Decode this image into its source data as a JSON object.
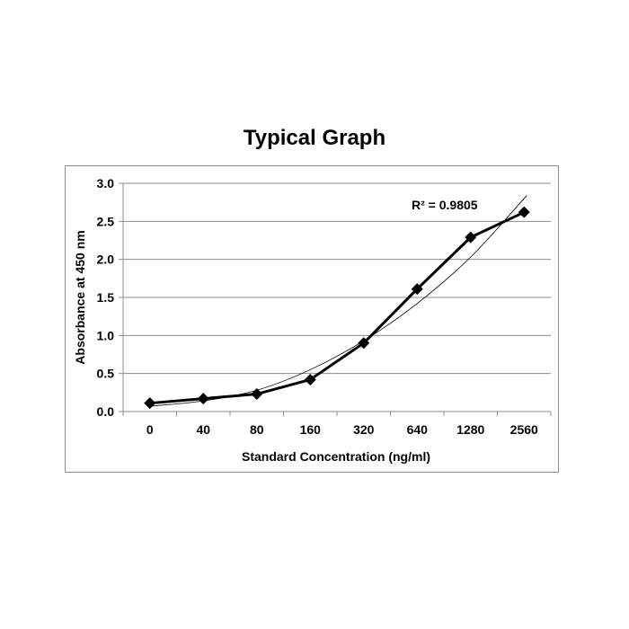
{
  "chart_data": {
    "type": "line",
    "title": "Typical Graph",
    "xlabel": "Standard Concentration (ng/ml)",
    "ylabel": "Absorbance at 450 nm",
    "categories": [
      "0",
      "40",
      "80",
      "160",
      "320",
      "640",
      "1280",
      "2560"
    ],
    "series": [
      {
        "values": [
          0.11,
          0.17,
          0.23,
          0.42,
          0.9,
          1.61,
          2.29,
          2.62
        ],
        "marker": "diamond",
        "color": "#000000"
      }
    ],
    "trendline": {
      "type": "polynomial",
      "annotation": "R² = 0.9805",
      "approx_values": [
        0.07,
        0.14,
        0.28,
        0.55,
        0.93,
        1.42,
        2.03,
        2.8
      ],
      "color": "#000000"
    },
    "ylim": [
      0,
      3.0
    ],
    "yticks": [
      "0.0",
      "0.5",
      "1.0",
      "1.5",
      "2.0",
      "2.5",
      "3.0"
    ],
    "grid": "horizontal",
    "legend": "none"
  }
}
